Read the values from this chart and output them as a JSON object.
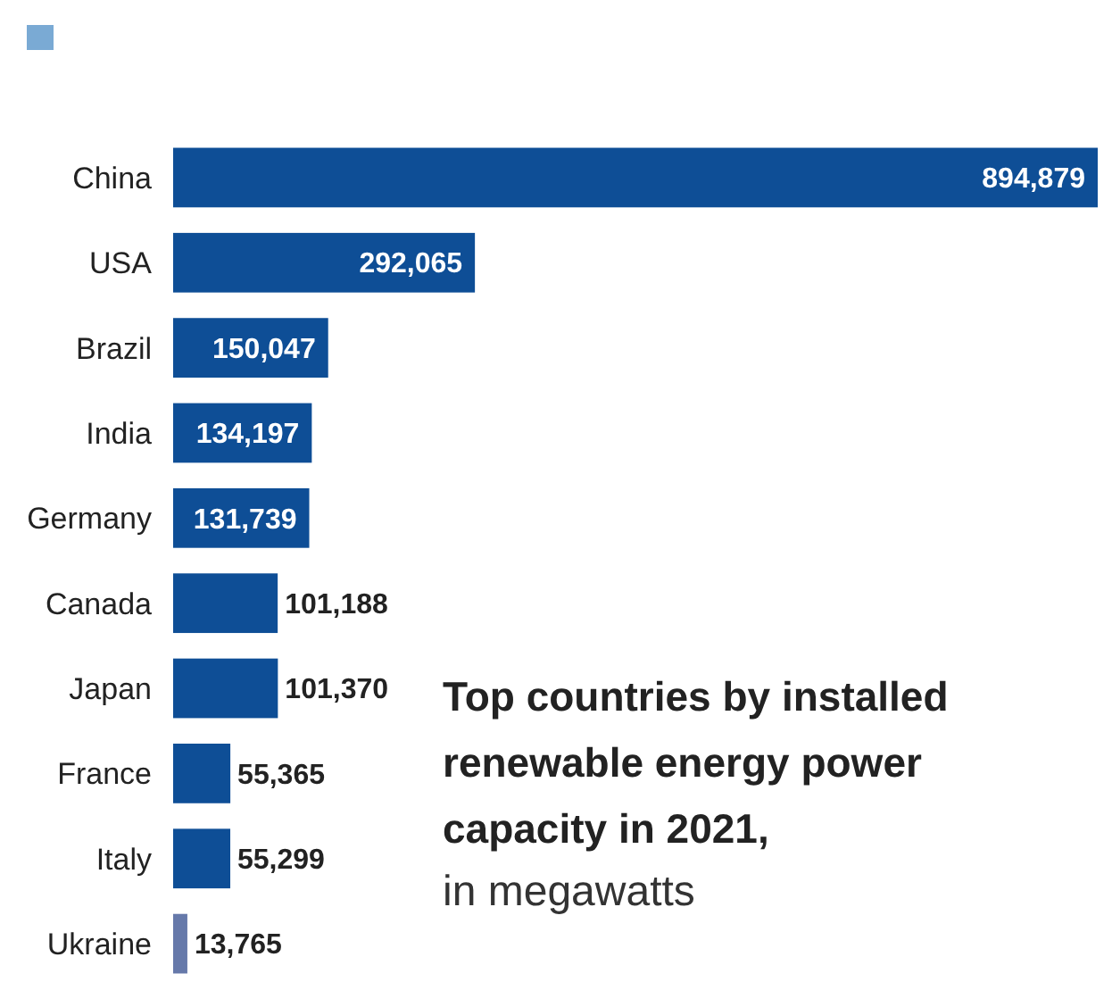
{
  "chart_data": {
    "type": "bar",
    "orientation": "horizontal",
    "title": "Top countries by installed renewable energy power capacity in 2021,",
    "subtitle": "in megawatts",
    "categories": [
      "China",
      "USA",
      "Brazil",
      "India",
      "Germany",
      "Canada",
      "Japan",
      "France",
      "Italy",
      "Ukraine"
    ],
    "values": [
      894879,
      292065,
      150047,
      134197,
      131739,
      101188,
      101370,
      55365,
      55299,
      13765
    ],
    "colors": [
      "#0e4e96",
      "#0e4e96",
      "#0e4e96",
      "#0e4e96",
      "#0e4e96",
      "#0e4e96",
      "#0e4e96",
      "#0e4e96",
      "#0e4e96",
      "#6679aa"
    ],
    "value_labels": [
      "894,879",
      "292,065",
      "150,047",
      "134,197",
      "131,739",
      "101,188",
      "101,370",
      "55,365",
      "55,299",
      "13,765"
    ]
  }
}
